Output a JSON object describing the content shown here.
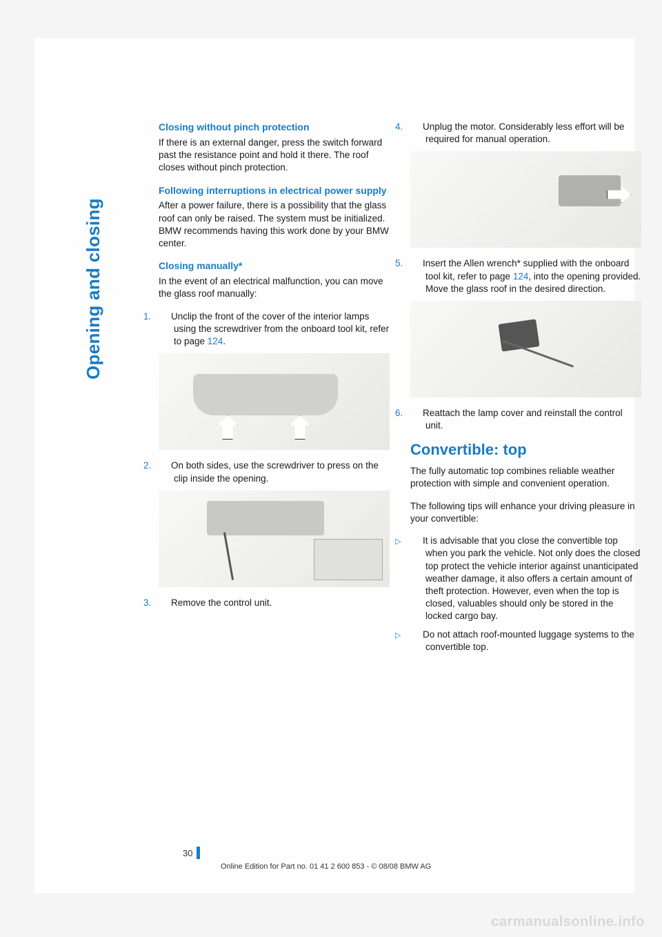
{
  "sidebar": {
    "section": "Opening and closing"
  },
  "left": {
    "h1": "Closing without pinch protection",
    "p1": "If there is an external danger, press the switch forward past the resistance point and hold it there. The roof closes without pinch protection.",
    "h2": "Following interruptions in electrical power supply",
    "p2": "After a power failure, there is a possibility that the glass roof can only be raised. The system must be initialized. BMW recommends having this work done by your BMW center.",
    "h3": "Closing manually*",
    "p3": "In the event of an electrical malfunction, you can move the glass roof manually:",
    "step1_num": "1.",
    "step1": "Unclip the front of the cover of the interior lamps using the screwdriver from the onboard tool kit, refer to page ",
    "step1_link": "124",
    "step1_end": ".",
    "step2_num": "2.",
    "step2": "On both sides, use the screwdriver to press on the clip inside the opening.",
    "step3_num": "3.",
    "step3": "Remove the control unit."
  },
  "right": {
    "step4_num": "4.",
    "step4": "Unplug the motor. Considerably less effort will be required for manual operation.",
    "step5_num": "5.",
    "step5a": "Insert the Allen wrench* supplied with the onboard tool kit, refer to page ",
    "step5_link": "124",
    "step5b": ", into the opening provided. Move the glass roof in the desired direction.",
    "step6_num": "6.",
    "step6": "Reattach the lamp cover and reinstall the control unit.",
    "h1": "Convertible: top",
    "p1": "The fully automatic top combines reliable weather protection with simple and convenient operation.",
    "p2": "The following tips will enhance your driving pleasure in your convertible:",
    "b1": "It is advisable that you close the convertible top when you park the vehicle. Not only does the closed top protect the vehicle interior against unanticipated weather damage, it also offers a certain amount of theft protection. However, even when the top is closed, valuables should only be stored in the locked cargo bay.",
    "b2": "Do not attach roof-mounted luggage systems to the convertible top."
  },
  "footer": {
    "page": "30",
    "text": "Online Edition for Part no. 01 41 2 600 853 - © 08/08 BMW AG"
  },
  "watermark": "carmanualsonline.info",
  "colors": {
    "blue": "#1a7bc4",
    "text": "#1a1a1a",
    "bg": "#f5f5f5",
    "page": "#fefefe",
    "watermark": "#d8d8d8"
  }
}
